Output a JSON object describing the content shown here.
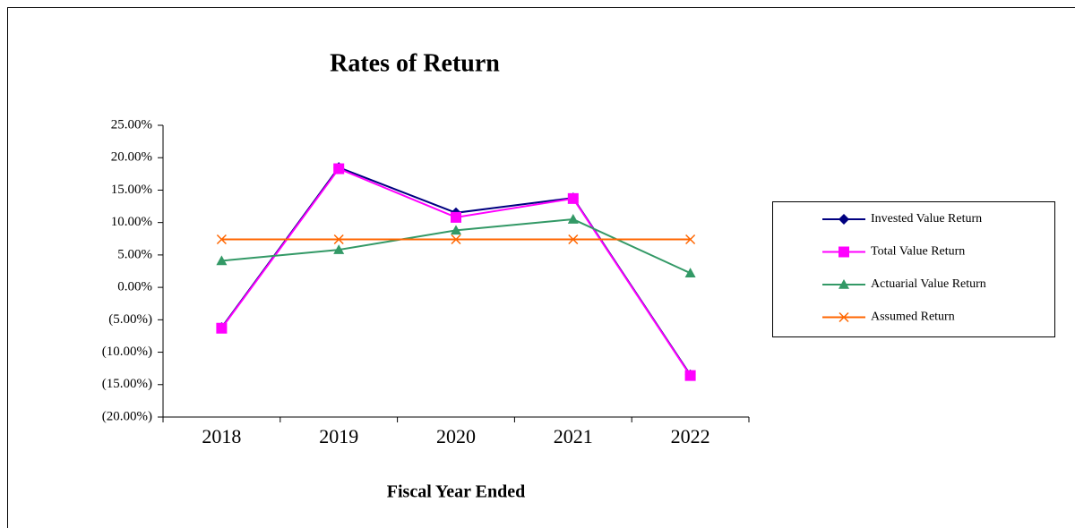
{
  "chart_data": {
    "type": "line",
    "title": "Rates of Return",
    "x_label": "Fiscal Year Ended",
    "categories": [
      "2018",
      "2019",
      "2020",
      "2021",
      "2022"
    ],
    "series": [
      {
        "name": "Invested Value Return",
        "color": "#000080",
        "marker": "diamond",
        "values": [
          -6.2,
          18.5,
          11.5,
          13.8,
          -13.5
        ]
      },
      {
        "name": "Total Value Return",
        "color": "#ff00ff",
        "marker": "square",
        "values": [
          -6.3,
          18.3,
          10.8,
          13.7,
          -13.6
        ]
      },
      {
        "name": "Actuarial Value Return",
        "color": "#339966",
        "marker": "triangle",
        "values": [
          4.1,
          5.8,
          8.8,
          10.5,
          2.2
        ]
      },
      {
        "name": "Assumed Return",
        "color": "#ff6600",
        "marker": "x",
        "values": [
          7.4,
          7.4,
          7.4,
          7.4,
          7.4
        ]
      }
    ],
    "ylim": [
      -20,
      25
    ],
    "yticks": [
      {
        "value": -20,
        "label": "(20.00%)"
      },
      {
        "value": -15,
        "label": "(15.00%)"
      },
      {
        "value": -10,
        "label": "(10.00%)"
      },
      {
        "value": -5,
        "label": "(5.00%)"
      },
      {
        "value": 0,
        "label": "0.00%"
      },
      {
        "value": 5,
        "label": "5.00%"
      },
      {
        "value": 10,
        "label": "10.00%"
      },
      {
        "value": 15,
        "label": "15.00%"
      },
      {
        "value": 20,
        "label": "20.00%"
      },
      {
        "value": 25,
        "label": "25.00%"
      }
    ],
    "grid": false,
    "legend": "right"
  }
}
